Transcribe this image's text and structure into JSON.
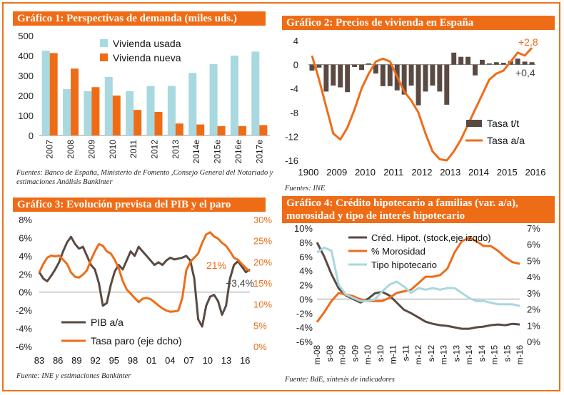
{
  "charts_meta": {
    "c1": {
      "title": "Gráfico 1: Perspectivas de demanda (miles uds.)",
      "source": "Fuentes: Banco de España, Ministerio de Fomento ,Consejo General del Notariado y estimaciones Análisis Bankinter"
    },
    "c2": {
      "title": "Gráfico 2: Precios de vivienda en España",
      "source": "Fuentes: INE"
    },
    "c3": {
      "title": "Gráfico 3: Evolución prevista del PIB y el paro",
      "source": "Fuente: INE y estimaciones Bankinter"
    },
    "c4": {
      "title_line1": "Gráfico 4: Crédito hipotecario a familias (var. a/a),",
      "title_line2": "morosidad y tipo de interés hipotecario",
      "source": "Fuente: BdE, síntesis de indicadores"
    }
  },
  "colors": {
    "accent": "#ef6c17",
    "light_blue": "#a8d8e0",
    "dark_brown": "#5a4a42"
  },
  "chart_data": [
    {
      "id": "c1",
      "type": "bar",
      "title": "Gráfico 1: Perspectivas de demanda (miles uds.)",
      "categories": [
        "2007",
        "2008",
        "2009",
        "2010",
        "2011",
        "2012",
        "2013",
        "2014e",
        "2015e",
        "2016e",
        "2017e"
      ],
      "series": [
        {
          "name": "Vivienda usada",
          "color": "#a8d8e0",
          "values": [
            425,
            232,
            222,
            293,
            222,
            248,
            248,
            313,
            357,
            400,
            420
          ]
        },
        {
          "name": "Vivienda nueva",
          "color": "#ef6c17",
          "values": [
            413,
            335,
            242,
            200,
            128,
            118,
            60,
            55,
            47,
            47,
            52
          ]
        }
      ],
      "ylim": [
        0,
        500
      ],
      "yticks": [
        "0",
        "100",
        "200",
        "300",
        "400",
        "500"
      ],
      "legend": "top-left"
    },
    {
      "id": "c2",
      "type": "bar+line",
      "title": "Gráfico 2: Precios de vivienda en España",
      "x_labels": [
        "1900",
        "2009",
        "2010",
        "2011",
        "2012",
        "2013",
        "2014",
        "2015",
        "2016"
      ],
      "yticks": [
        "4",
        "0",
        "-4",
        "-8",
        "-12",
        "-16"
      ],
      "ylim": [
        -16,
        4
      ],
      "series": [
        {
          "name": "Tasa t/t",
          "type": "bar",
          "color": "#5a4a42",
          "values": [
            -1.0,
            -0.5,
            -4.5,
            -3.5,
            -3.8,
            -4.6,
            -0.4,
            -0.9,
            0.2,
            -1.5,
            -3.6,
            -3.6,
            -4.3,
            -5.0,
            -3.5,
            -6.8,
            -4.5,
            -3.5,
            -4.5,
            -6.7,
            2.0,
            1.3,
            1.3,
            -1.8,
            0.8,
            0.2,
            0.4,
            0.3,
            0.6,
            1.0,
            0.5,
            0.4
          ]
        },
        {
          "name": "Tasa a/a",
          "type": "line",
          "color": "#ef6c17",
          "values": [
            1.5,
            -2.5,
            -7.0,
            -11.5,
            -12.5,
            -10.5,
            -7.5,
            -4.0,
            -1.5,
            0.5,
            1.0,
            0.5,
            -2.0,
            -4.5,
            -6.0,
            -8.0,
            -11.5,
            -14.5,
            -15.8,
            -16.0,
            -14.5,
            -12.5,
            -10.0,
            -7.5,
            -5.0,
            -2.5,
            -1.5,
            -1.0,
            0.5,
            2.0,
            1.5,
            2.8
          ]
        }
      ],
      "annotations": [
        "+2,8",
        "+0,4"
      ],
      "legend": "bottom-right"
    },
    {
      "id": "c3",
      "type": "line",
      "title": "Gráfico 3: Evolución prevista del PIB y el paro",
      "x_labels": [
        "83",
        "86",
        "89",
        "92",
        "95",
        "98",
        "01",
        "04",
        "07",
        "10",
        "13",
        "16"
      ],
      "yticks_left": [
        "8%",
        "6%",
        "4%",
        "2%",
        "0%",
        "-2%",
        "-4%",
        "-6%"
      ],
      "yticks_right": [
        "30%",
        "25%",
        "20%",
        "15%",
        "10%",
        "5%",
        "0%"
      ],
      "series": [
        {
          "name": "PIB a/a",
          "axis": "left",
          "color": "#5a4a42",
          "values": [
            2.2,
            1.5,
            1.2,
            1.8,
            2.5,
            3.3,
            4.5,
            5.5,
            6.1,
            5.3,
            4.8,
            5.0,
            4.0,
            3.0,
            2.5,
            1.0,
            -1.5,
            -1.2,
            0.8,
            2.3,
            3.0,
            2.5,
            3.5,
            4.5,
            4.0,
            5.0,
            4.5,
            4.0,
            3.5,
            3.0,
            3.3,
            3.0,
            3.5,
            3.8,
            3.6,
            3.7,
            3.8,
            4.0,
            3.5,
            1.5,
            -3.0,
            -3.8,
            -1.5,
            -0.5,
            -0.3,
            -1.0,
            -2.5,
            -1.5,
            1.5,
            3.0,
            3.4,
            2.8,
            2.2,
            2.5
          ]
        },
        {
          "name": "Tasa paro (eje dcho)",
          "axis": "right",
          "color": "#ef6c17",
          "values": [
            17.5,
            19.5,
            21.0,
            21.5,
            21.3,
            21.5,
            20.5,
            19.5,
            17.5,
            16.5,
            16.3,
            17.0,
            18.0,
            20.5,
            22.5,
            24.2,
            23.8,
            22.5,
            22.0,
            20.5,
            18.5,
            15.5,
            13.5,
            12.5,
            11.5,
            10.5,
            11.3,
            11.5,
            11.2,
            10.5,
            9.7,
            9.0,
            8.5,
            8.2,
            8.3,
            8.5,
            11.5,
            18.0,
            20.0,
            21.0,
            22.0,
            24.5,
            26.5,
            27.0,
            26.0,
            25.5,
            24.5,
            23.8,
            22.5,
            21.0,
            20.5,
            19.5,
            18.5,
            17.8
          ]
        }
      ],
      "annotations": [
        "21%",
        "+3,4%"
      ],
      "legend": "bottom-left"
    },
    {
      "id": "c4",
      "type": "line",
      "title": "Gráfico 4: Crédito hipotecario a familias (var. a/a), morosidad y tipo de interés hipotecario",
      "x_labels": [
        "m-08",
        "s-08",
        "m-09",
        "s-09",
        "m-10",
        "s-10",
        "m-11",
        "s-11",
        "m-12",
        "s-12",
        "m-13",
        "s-13",
        "m-14",
        "s-14",
        "m-15",
        "s-15",
        "m-16"
      ],
      "yticks_left": [
        "10%",
        "8%",
        "6%",
        "4%",
        "2%",
        "0%",
        "-2%",
        "-4%",
        "-6%"
      ],
      "yticks_right": [
        "7%",
        "6%",
        "5%",
        "4%",
        "3%",
        "2%",
        "1%",
        "0%"
      ],
      "series": [
        {
          "name": "Créd. Hipot. (stock,eje izqdo)",
          "axis": "left",
          "color": "#5a4a42",
          "values": [
            8.0,
            6.0,
            3.5,
            1.5,
            0.5,
            0.0,
            -0.5,
            0.0,
            0.8,
            1.0,
            0.5,
            -0.5,
            -1.5,
            -2.0,
            -2.6,
            -3.2,
            -3.5,
            -3.7,
            -3.8,
            -4.0,
            -4.2,
            -4.2,
            -4.0,
            -3.9,
            -3.7,
            -3.6,
            -3.7,
            -3.5,
            -3.6
          ]
        },
        {
          "name": "% Morosidad",
          "axis": "right",
          "color": "#ef6c17",
          "values": [
            1.2,
            1.8,
            2.5,
            3.0,
            2.9,
            2.8,
            2.6,
            2.5,
            2.5,
            2.5,
            2.7,
            3.0,
            3.1,
            3.2,
            3.6,
            4.0,
            4.0,
            4.1,
            4.5,
            5.5,
            6.2,
            6.4,
            6.2,
            5.9,
            5.9,
            5.6,
            5.2,
            4.9,
            4.8
          ]
        },
        {
          "name": "Tipo hipotecario",
          "axis": "right",
          "color": "#a8d8e0",
          "values": [
            5.5,
            5.8,
            5.6,
            3.5,
            2.9,
            2.7,
            2.5,
            2.5,
            2.6,
            3.1,
            3.5,
            3.7,
            3.4,
            3.0,
            3.3,
            3.2,
            3.3,
            3.2,
            3.3,
            3.3,
            3.0,
            2.7,
            2.5,
            2.5,
            2.4,
            2.3,
            2.3,
            2.3,
            2.2
          ]
        }
      ],
      "legend": "top-center"
    }
  ]
}
